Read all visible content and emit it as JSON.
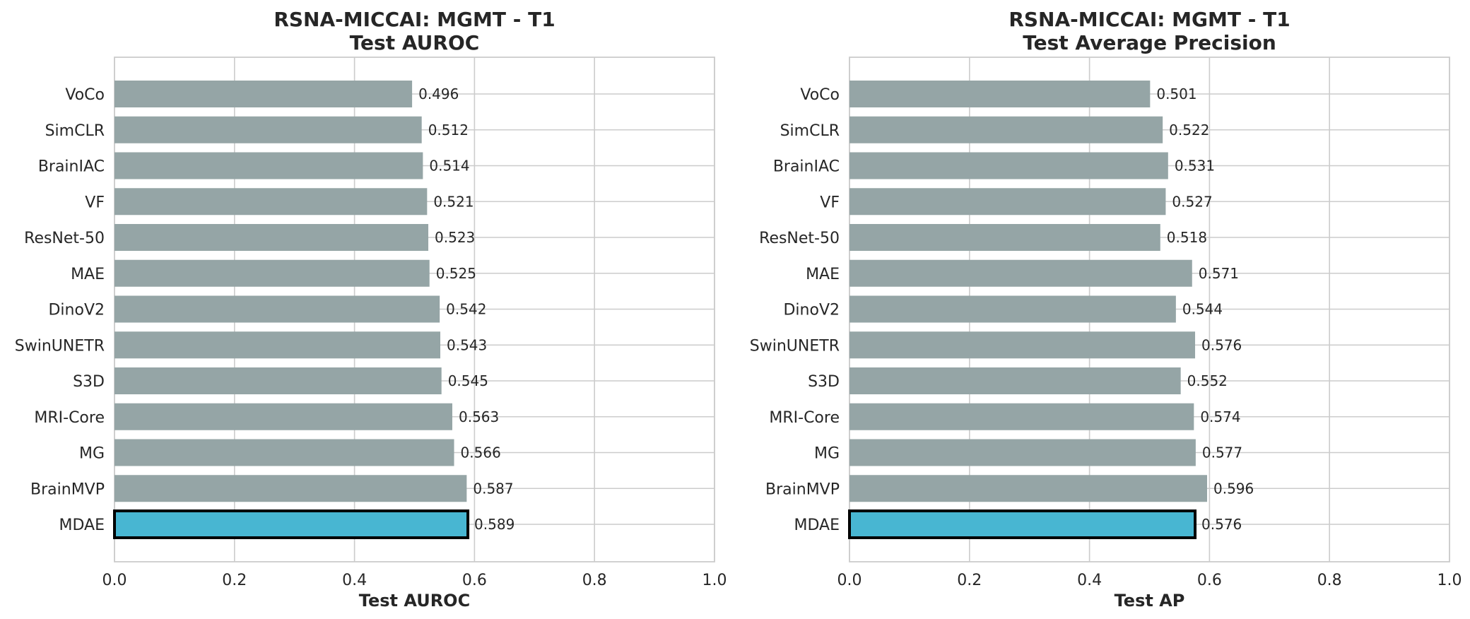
{
  "chart_data": [
    {
      "type": "bar",
      "orientation": "horizontal",
      "title": "RSNA-MICCAI: MGMT - T1\nTest AUROC",
      "title_lines": [
        "RSNA-MICCAI: MGMT - T1",
        "Test AUROC"
      ],
      "xlabel": "Test AUROC",
      "ylabel": "",
      "xlim": [
        0.0,
        1.0
      ],
      "xticks": [
        "0.0",
        "0.2",
        "0.4",
        "0.6",
        "0.8",
        "1.0"
      ],
      "grid": true,
      "categories": [
        "VoCo",
        "SimCLR",
        "BrainIAC",
        "VF",
        "ResNet-50",
        "MAE",
        "DinoV2",
        "SwinUNETR",
        "S3D",
        "MRI-Core",
        "MG",
        "BrainMVP",
        "MDAE"
      ],
      "values": [
        0.496,
        0.512,
        0.514,
        0.521,
        0.523,
        0.525,
        0.542,
        0.543,
        0.545,
        0.563,
        0.566,
        0.587,
        0.589
      ],
      "value_labels": [
        "0.496",
        "0.512",
        "0.514",
        "0.521",
        "0.523",
        "0.525",
        "0.542",
        "0.543",
        "0.545",
        "0.563",
        "0.566",
        "0.587",
        "0.589"
      ],
      "highlight": "MDAE",
      "colors": {
        "bar": "#95a5a6",
        "highlight": "#48b6d2",
        "highlight_edge": "#000000"
      }
    },
    {
      "type": "bar",
      "orientation": "horizontal",
      "title": "RSNA-MICCAI: MGMT - T1\nTest Average Precision",
      "title_lines": [
        "RSNA-MICCAI: MGMT - T1",
        "Test Average Precision"
      ],
      "xlabel": "Test AP",
      "ylabel": "",
      "xlim": [
        0.0,
        1.0
      ],
      "xticks": [
        "0.0",
        "0.2",
        "0.4",
        "0.6",
        "0.8",
        "1.0"
      ],
      "grid": true,
      "categories": [
        "VoCo",
        "SimCLR",
        "BrainIAC",
        "VF",
        "ResNet-50",
        "MAE",
        "DinoV2",
        "SwinUNETR",
        "S3D",
        "MRI-Core",
        "MG",
        "BrainMVP",
        "MDAE"
      ],
      "values": [
        0.501,
        0.522,
        0.531,
        0.527,
        0.518,
        0.571,
        0.544,
        0.576,
        0.552,
        0.574,
        0.577,
        0.596,
        0.576
      ],
      "value_labels": [
        "0.501",
        "0.522",
        "0.531",
        "0.527",
        "0.518",
        "0.571",
        "0.544",
        "0.576",
        "0.552",
        "0.574",
        "0.577",
        "0.596",
        "0.576"
      ],
      "highlight": "MDAE",
      "colors": {
        "bar": "#95a5a6",
        "highlight": "#48b6d2",
        "highlight_edge": "#000000"
      }
    }
  ]
}
